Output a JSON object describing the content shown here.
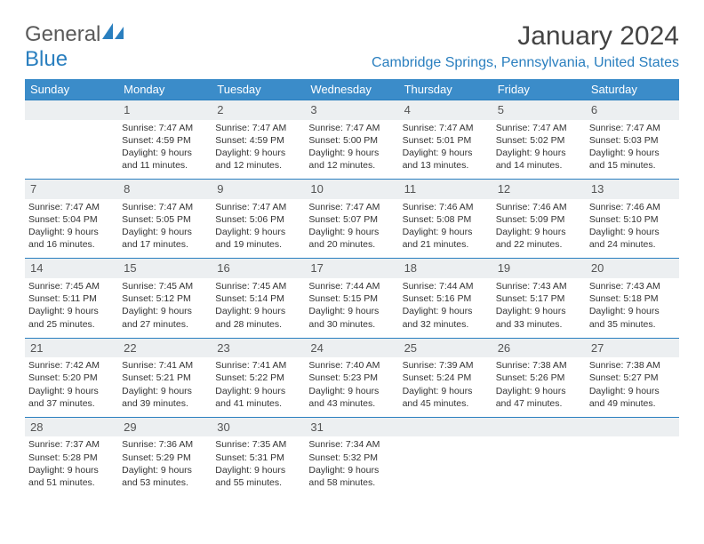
{
  "logo": {
    "text_gray": "General",
    "text_blue": "Blue",
    "icon_color": "#2a7fbf"
  },
  "header": {
    "month_title": "January 2024",
    "location": "Cambridge Springs, Pennsylvania, United States"
  },
  "colors": {
    "header_bg": "#3b8cc9",
    "accent": "#2a7fbf",
    "daynum_bg": "#eceff1",
    "text": "#333333"
  },
  "weekdays": [
    "Sunday",
    "Monday",
    "Tuesday",
    "Wednesday",
    "Thursday",
    "Friday",
    "Saturday"
  ],
  "weeks": [
    {
      "nums": [
        "",
        "1",
        "2",
        "3",
        "4",
        "5",
        "6"
      ],
      "cells": [
        null,
        {
          "sunrise": "Sunrise: 7:47 AM",
          "sunset": "Sunset: 4:59 PM",
          "day1": "Daylight: 9 hours",
          "day2": "and 11 minutes."
        },
        {
          "sunrise": "Sunrise: 7:47 AM",
          "sunset": "Sunset: 4:59 PM",
          "day1": "Daylight: 9 hours",
          "day2": "and 12 minutes."
        },
        {
          "sunrise": "Sunrise: 7:47 AM",
          "sunset": "Sunset: 5:00 PM",
          "day1": "Daylight: 9 hours",
          "day2": "and 12 minutes."
        },
        {
          "sunrise": "Sunrise: 7:47 AM",
          "sunset": "Sunset: 5:01 PM",
          "day1": "Daylight: 9 hours",
          "day2": "and 13 minutes."
        },
        {
          "sunrise": "Sunrise: 7:47 AM",
          "sunset": "Sunset: 5:02 PM",
          "day1": "Daylight: 9 hours",
          "day2": "and 14 minutes."
        },
        {
          "sunrise": "Sunrise: 7:47 AM",
          "sunset": "Sunset: 5:03 PM",
          "day1": "Daylight: 9 hours",
          "day2": "and 15 minutes."
        }
      ]
    },
    {
      "nums": [
        "7",
        "8",
        "9",
        "10",
        "11",
        "12",
        "13"
      ],
      "cells": [
        {
          "sunrise": "Sunrise: 7:47 AM",
          "sunset": "Sunset: 5:04 PM",
          "day1": "Daylight: 9 hours",
          "day2": "and 16 minutes."
        },
        {
          "sunrise": "Sunrise: 7:47 AM",
          "sunset": "Sunset: 5:05 PM",
          "day1": "Daylight: 9 hours",
          "day2": "and 17 minutes."
        },
        {
          "sunrise": "Sunrise: 7:47 AM",
          "sunset": "Sunset: 5:06 PM",
          "day1": "Daylight: 9 hours",
          "day2": "and 19 minutes."
        },
        {
          "sunrise": "Sunrise: 7:47 AM",
          "sunset": "Sunset: 5:07 PM",
          "day1": "Daylight: 9 hours",
          "day2": "and 20 minutes."
        },
        {
          "sunrise": "Sunrise: 7:46 AM",
          "sunset": "Sunset: 5:08 PM",
          "day1": "Daylight: 9 hours",
          "day2": "and 21 minutes."
        },
        {
          "sunrise": "Sunrise: 7:46 AM",
          "sunset": "Sunset: 5:09 PM",
          "day1": "Daylight: 9 hours",
          "day2": "and 22 minutes."
        },
        {
          "sunrise": "Sunrise: 7:46 AM",
          "sunset": "Sunset: 5:10 PM",
          "day1": "Daylight: 9 hours",
          "day2": "and 24 minutes."
        }
      ]
    },
    {
      "nums": [
        "14",
        "15",
        "16",
        "17",
        "18",
        "19",
        "20"
      ],
      "cells": [
        {
          "sunrise": "Sunrise: 7:45 AM",
          "sunset": "Sunset: 5:11 PM",
          "day1": "Daylight: 9 hours",
          "day2": "and 25 minutes."
        },
        {
          "sunrise": "Sunrise: 7:45 AM",
          "sunset": "Sunset: 5:12 PM",
          "day1": "Daylight: 9 hours",
          "day2": "and 27 minutes."
        },
        {
          "sunrise": "Sunrise: 7:45 AM",
          "sunset": "Sunset: 5:14 PM",
          "day1": "Daylight: 9 hours",
          "day2": "and 28 minutes."
        },
        {
          "sunrise": "Sunrise: 7:44 AM",
          "sunset": "Sunset: 5:15 PM",
          "day1": "Daylight: 9 hours",
          "day2": "and 30 minutes."
        },
        {
          "sunrise": "Sunrise: 7:44 AM",
          "sunset": "Sunset: 5:16 PM",
          "day1": "Daylight: 9 hours",
          "day2": "and 32 minutes."
        },
        {
          "sunrise": "Sunrise: 7:43 AM",
          "sunset": "Sunset: 5:17 PM",
          "day1": "Daylight: 9 hours",
          "day2": "and 33 minutes."
        },
        {
          "sunrise": "Sunrise: 7:43 AM",
          "sunset": "Sunset: 5:18 PM",
          "day1": "Daylight: 9 hours",
          "day2": "and 35 minutes."
        }
      ]
    },
    {
      "nums": [
        "21",
        "22",
        "23",
        "24",
        "25",
        "26",
        "27"
      ],
      "cells": [
        {
          "sunrise": "Sunrise: 7:42 AM",
          "sunset": "Sunset: 5:20 PM",
          "day1": "Daylight: 9 hours",
          "day2": "and 37 minutes."
        },
        {
          "sunrise": "Sunrise: 7:41 AM",
          "sunset": "Sunset: 5:21 PM",
          "day1": "Daylight: 9 hours",
          "day2": "and 39 minutes."
        },
        {
          "sunrise": "Sunrise: 7:41 AM",
          "sunset": "Sunset: 5:22 PM",
          "day1": "Daylight: 9 hours",
          "day2": "and 41 minutes."
        },
        {
          "sunrise": "Sunrise: 7:40 AM",
          "sunset": "Sunset: 5:23 PM",
          "day1": "Daylight: 9 hours",
          "day2": "and 43 minutes."
        },
        {
          "sunrise": "Sunrise: 7:39 AM",
          "sunset": "Sunset: 5:24 PM",
          "day1": "Daylight: 9 hours",
          "day2": "and 45 minutes."
        },
        {
          "sunrise": "Sunrise: 7:38 AM",
          "sunset": "Sunset: 5:26 PM",
          "day1": "Daylight: 9 hours",
          "day2": "and 47 minutes."
        },
        {
          "sunrise": "Sunrise: 7:38 AM",
          "sunset": "Sunset: 5:27 PM",
          "day1": "Daylight: 9 hours",
          "day2": "and 49 minutes."
        }
      ]
    },
    {
      "nums": [
        "28",
        "29",
        "30",
        "31",
        "",
        "",
        ""
      ],
      "cells": [
        {
          "sunrise": "Sunrise: 7:37 AM",
          "sunset": "Sunset: 5:28 PM",
          "day1": "Daylight: 9 hours",
          "day2": "and 51 minutes."
        },
        {
          "sunrise": "Sunrise: 7:36 AM",
          "sunset": "Sunset: 5:29 PM",
          "day1": "Daylight: 9 hours",
          "day2": "and 53 minutes."
        },
        {
          "sunrise": "Sunrise: 7:35 AM",
          "sunset": "Sunset: 5:31 PM",
          "day1": "Daylight: 9 hours",
          "day2": "and 55 minutes."
        },
        {
          "sunrise": "Sunrise: 7:34 AM",
          "sunset": "Sunset: 5:32 PM",
          "day1": "Daylight: 9 hours",
          "day2": "and 58 minutes."
        },
        null,
        null,
        null
      ]
    }
  ]
}
